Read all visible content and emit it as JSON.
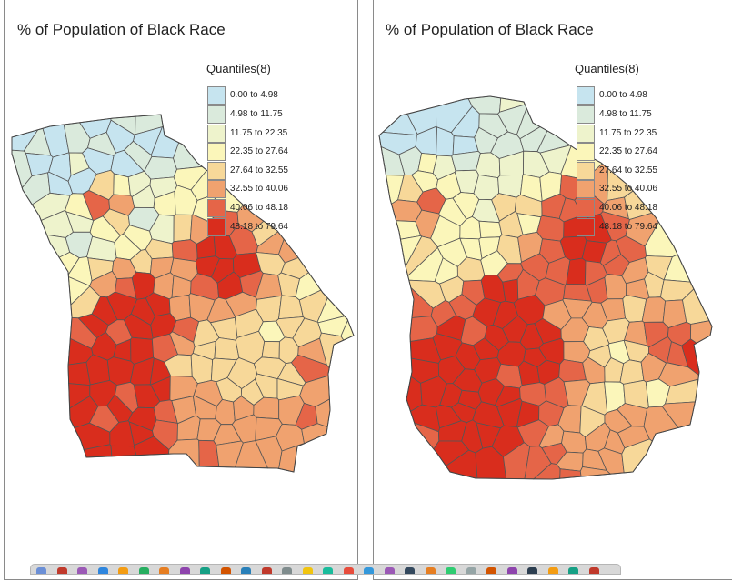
{
  "maps": [
    {
      "title": "% of Population of Black Race",
      "legend_title": "Quantiles(8)"
    },
    {
      "title": "% of Population of Black Race",
      "legend_title": "Quantiles(8)"
    }
  ],
  "legend": {
    "classes": [
      {
        "label": "0.00 to 4.98",
        "color": "#c6e4ef"
      },
      {
        "label": "4.98 to 11.75",
        "color": "#daeadc"
      },
      {
        "label": "11.75 to 22.35",
        "color": "#eef3cc"
      },
      {
        "label": "22.35 to 27.64",
        "color": "#fbf6ba"
      },
      {
        "label": "27.64 to 32.55",
        "color": "#f7d899"
      },
      {
        "label": "32.55 to 40.06",
        "color": "#f0a26f"
      },
      {
        "label": "40.06 to 48.18",
        "color": "#e56548"
      },
      {
        "label": "48.18 to 79.64",
        "color": "#d92d1d"
      }
    ]
  },
  "colors": {
    "county_border": "#555555",
    "panel_border": "#8a8a8a"
  }
}
